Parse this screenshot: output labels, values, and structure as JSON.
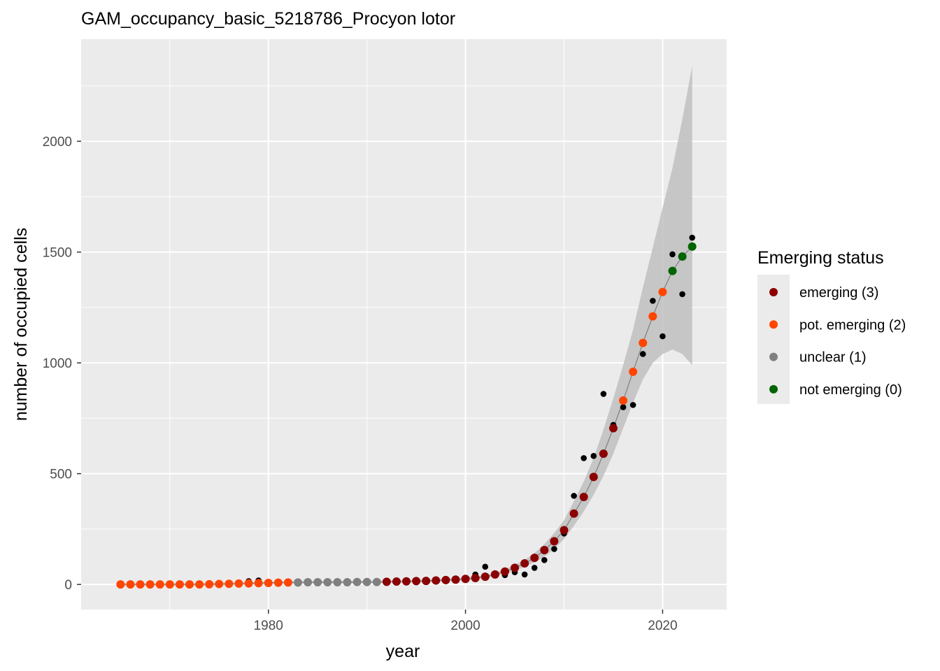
{
  "chart_data": {
    "type": "scatter",
    "title": "GAM_occupancy_basic_5218786_Procyon lotor",
    "xlabel": "year",
    "ylabel": "number of occupied cells",
    "xlim": [
      1961,
      2026.5
    ],
    "ylim": [
      -113,
      2461
    ],
    "x_ticks": [
      1980,
      2000,
      2020
    ],
    "y_ticks": [
      0,
      500,
      1000,
      1500,
      2000
    ],
    "x_tick_labels": [
      "1980",
      "2000",
      "2020"
    ],
    "y_tick_labels": [
      "0",
      "500",
      "1000",
      "1500",
      "2000"
    ],
    "grid": true,
    "legend_position": "right",
    "legend": {
      "title": "Emerging status",
      "items": [
        {
          "label": "emerging (3)",
          "status": 3,
          "color": "#8B0000"
        },
        {
          "label": "pot. emerging (2)",
          "status": 2,
          "color": "#FF4500"
        },
        {
          "label": "unclear (1)",
          "status": 1,
          "color": "#808080"
        },
        {
          "label": "not emerging (0)",
          "status": 0,
          "color": "#006400"
        }
      ]
    },
    "colors": {
      "observed": "#000000",
      "fit_line": "#7f7f7f",
      "ribbon": "#bfbfbf",
      "panel": "#ebebeb",
      "grid": "#ffffff"
    },
    "observed": {
      "x": [
        1965,
        1966,
        1967,
        1968,
        1969,
        1970,
        1971,
        1972,
        1973,
        1974,
        1975,
        1976,
        1977,
        1978,
        1979,
        1980,
        1981,
        1982,
        1983,
        1984,
        1985,
        1986,
        1987,
        1988,
        1989,
        1990,
        1991,
        1992,
        1993,
        1994,
        1995,
        1996,
        1997,
        1998,
        1999,
        2000,
        2001,
        2002,
        2003,
        2004,
        2005,
        2006,
        2007,
        2008,
        2009,
        2010,
        2011,
        2012,
        2013,
        2014,
        2015,
        2016,
        2017,
        2018,
        2019,
        2020,
        2021,
        2022,
        2023
      ],
      "y": [
        0,
        0,
        0,
        0,
        1,
        1,
        1,
        2,
        3,
        4,
        5,
        6,
        8,
        15,
        18,
        10,
        7,
        12,
        10,
        9,
        8,
        7,
        8,
        10,
        12,
        15,
        12,
        12,
        14,
        10,
        15,
        18,
        22,
        15,
        20,
        25,
        45,
        80,
        45,
        42,
        55,
        45,
        75,
        110,
        160,
        230,
        400,
        570,
        580,
        860,
        720,
        800,
        810,
        1040,
        1280,
        1120,
        1490,
        1310,
        1565
      ]
    },
    "fitted": {
      "x": [
        1965,
        1966,
        1967,
        1968,
        1969,
        1970,
        1971,
        1972,
        1973,
        1974,
        1975,
        1976,
        1977,
        1978,
        1979,
        1980,
        1981,
        1982,
        1983,
        1984,
        1985,
        1986,
        1987,
        1988,
        1989,
        1990,
        1991,
        1992,
        1993,
        1994,
        1995,
        1996,
        1997,
        1998,
        1999,
        2000,
        2001,
        2002,
        2003,
        2004,
        2005,
        2006,
        2007,
        2008,
        2009,
        2010,
        2011,
        2012,
        2013,
        2014,
        2015,
        2016,
        2017,
        2018,
        2019,
        2020,
        2021,
        2022,
        2023
      ],
      "y": [
        0,
        0,
        0,
        0,
        0,
        0,
        0,
        0,
        0,
        1,
        2,
        3,
        4,
        5,
        6,
        7,
        8,
        9,
        9,
        10,
        10,
        10,
        10,
        10,
        11,
        11,
        11,
        12,
        13,
        14,
        15,
        16,
        18,
        20,
        22,
        25,
        29,
        35,
        45,
        58,
        75,
        95,
        120,
        155,
        195,
        245,
        320,
        395,
        485,
        590,
        705,
        830,
        960,
        1090,
        1210,
        1320,
        1415,
        1480,
        1525
      ],
      "status": [
        2,
        2,
        2,
        2,
        2,
        2,
        2,
        2,
        2,
        2,
        2,
        2,
        2,
        2,
        2,
        2,
        2,
        2,
        1,
        1,
        1,
        1,
        1,
        1,
        1,
        1,
        1,
        3,
        3,
        3,
        3,
        3,
        3,
        3,
        3,
        3,
        3,
        3,
        3,
        3,
        3,
        3,
        3,
        3,
        3,
        3,
        3,
        3,
        3,
        3,
        3,
        2,
        2,
        2,
        2,
        2,
        0,
        0,
        0
      ],
      "lower": [
        -5,
        -5,
        -5,
        -5,
        -5,
        -5,
        -5,
        -5,
        -5,
        -4,
        -3,
        -2,
        -1,
        0,
        1,
        2,
        3,
        4,
        4,
        5,
        5,
        5,
        5,
        5,
        6,
        6,
        6,
        7,
        8,
        9,
        10,
        11,
        12,
        14,
        16,
        18,
        22,
        28,
        37,
        48,
        62,
        80,
        100,
        125,
        160,
        205,
        265,
        330,
        405,
        490,
        590,
        705,
        820,
        925,
        1000,
        1040,
        1060,
        1040,
        990
      ],
      "upper": [
        5,
        5,
        5,
        5,
        5,
        5,
        5,
        5,
        5,
        6,
        7,
        8,
        9,
        10,
        11,
        12,
        13,
        14,
        14,
        15,
        15,
        15,
        15,
        15,
        16,
        16,
        16,
        17,
        18,
        19,
        20,
        21,
        24,
        26,
        28,
        32,
        36,
        42,
        53,
        68,
        88,
        112,
        142,
        182,
        232,
        290,
        375,
        465,
        570,
        700,
        840,
        990,
        1150,
        1340,
        1520,
        1700,
        1880,
        2100,
        2340
      ]
    }
  }
}
